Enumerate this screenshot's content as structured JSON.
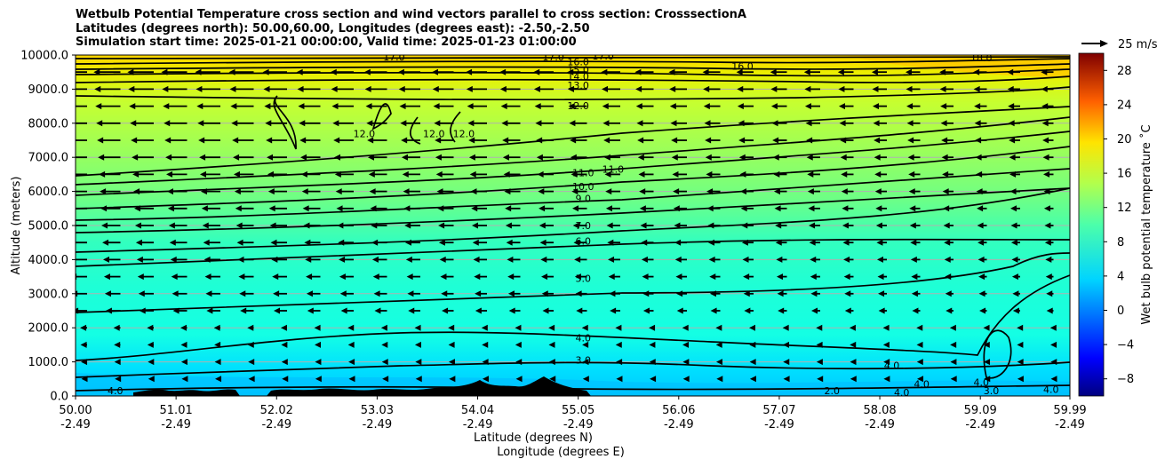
{
  "chart_data": {
    "type": "heatmap",
    "title_lines": [
      "Wetbulb Potential Temperature cross section and wind vectors parallel to cross section: CrosssectionA",
      "Latitudes (degrees north): 50.00,60.00, Longitudes (degrees east): -2.50,-2.50",
      "Simulation start time: 2025-01-21 00:00:00, Valid time: 2025-01-23 01:00:00"
    ],
    "ylabel": "Altitude (meters)",
    "xlabel_lines": [
      "Latitude (degrees N)",
      "Longitude (degrees E)"
    ],
    "xlim": [
      50.0,
      59.99
    ],
    "ylim": [
      0,
      10000
    ],
    "y_ticks": [
      0,
      1000,
      2000,
      3000,
      4000,
      5000,
      6000,
      7000,
      8000,
      9000,
      10000
    ],
    "y_tick_labels": [
      "0.0",
      "1000.0",
      "2000.0",
      "3000.0",
      "4000.0",
      "5000.0",
      "6000.0",
      "7000.0",
      "8000.0",
      "9000.0",
      "10000.0"
    ],
    "x_ticks": [
      50.0,
      51.01,
      52.02,
      53.03,
      54.04,
      55.05,
      56.06,
      57.07,
      58.08,
      59.09,
      59.99
    ],
    "x_tick_labels": [
      "50.00",
      "51.01",
      "52.02",
      "53.03",
      "54.04",
      "55.05",
      "56.06",
      "57.07",
      "58.08",
      "59.09",
      "59.99"
    ],
    "x_tick_sublabels": [
      "-2.49",
      "-2.49",
      "-2.49",
      "-2.49",
      "-2.49",
      "-2.49",
      "-2.49",
      "-2.49",
      "-2.49",
      "-2.49",
      "-2.49"
    ],
    "grid": "horizontal",
    "colorbar": {
      "label": "Wet bulb potential temperature $^\\circ$C",
      "label_display": "Wet bulb potential temperature ˚C",
      "range": [
        -10,
        30
      ],
      "ticks": [
        -8,
        -4,
        0,
        4,
        8,
        12,
        16,
        20,
        24,
        28
      ],
      "tick_labels": [
        "−8",
        "−4",
        "0",
        "4",
        "8",
        "12",
        "16",
        "20",
        "24",
        "28"
      ],
      "colormap": "jet"
    },
    "vector_key": {
      "label": "25 m/s",
      "value": 25
    },
    "contour_labels": [
      {
        "text": "17.0",
        "x": 53.2,
        "y": 9950
      },
      {
        "text": "17.0",
        "x": 54.8,
        "y": 9950
      },
      {
        "text": "17.0",
        "x": 55.3,
        "y": 9970
      },
      {
        "text": "18.0",
        "x": 59.1,
        "y": 9920
      },
      {
        "text": "16.0",
        "x": 55.05,
        "y": 9800
      },
      {
        "text": "16.0",
        "x": 56.7,
        "y": 9680
      },
      {
        "text": "15.0",
        "x": 55.05,
        "y": 9570
      },
      {
        "text": "14.0",
        "x": 55.05,
        "y": 9380
      },
      {
        "text": "13.0",
        "x": 55.05,
        "y": 9120
      },
      {
        "text": "12.0",
        "x": 55.05,
        "y": 8520
      },
      {
        "text": "12.0",
        "x": 52.9,
        "y": 7700
      },
      {
        "text": "12.0",
        "x": 53.6,
        "y": 7700
      },
      {
        "text": "12.0",
        "x": 53.9,
        "y": 7700
      },
      {
        "text": "11.0",
        "x": 55.1,
        "y": 6550
      },
      {
        "text": "11.0",
        "x": 55.4,
        "y": 6650
      },
      {
        "text": "10.0",
        "x": 55.1,
        "y": 6150
      },
      {
        "text": "9.0",
        "x": 55.1,
        "y": 5800
      },
      {
        "text": "7.0",
        "x": 55.1,
        "y": 5000
      },
      {
        "text": "6.0",
        "x": 55.1,
        "y": 4550
      },
      {
        "text": "5.0",
        "x": 55.1,
        "y": 3450
      },
      {
        "text": "4.0",
        "x": 55.1,
        "y": 1700
      },
      {
        "text": "3.0",
        "x": 55.1,
        "y": 1050
      },
      {
        "text": "4.0",
        "x": 58.2,
        "y": 900
      },
      {
        "text": "4.0",
        "x": 58.5,
        "y": 350
      },
      {
        "text": "4.0",
        "x": 59.1,
        "y": 400
      },
      {
        "text": "4.0",
        "x": 59.8,
        "y": 200
      },
      {
        "text": "3.0",
        "x": 59.2,
        "y": 150
      },
      {
        "text": "4.0",
        "x": 50.4,
        "y": 150
      },
      {
        "text": "2.0",
        "x": 57.6,
        "y": 150
      },
      {
        "text": "4.0",
        "x": 58.3,
        "y": 100
      }
    ]
  }
}
